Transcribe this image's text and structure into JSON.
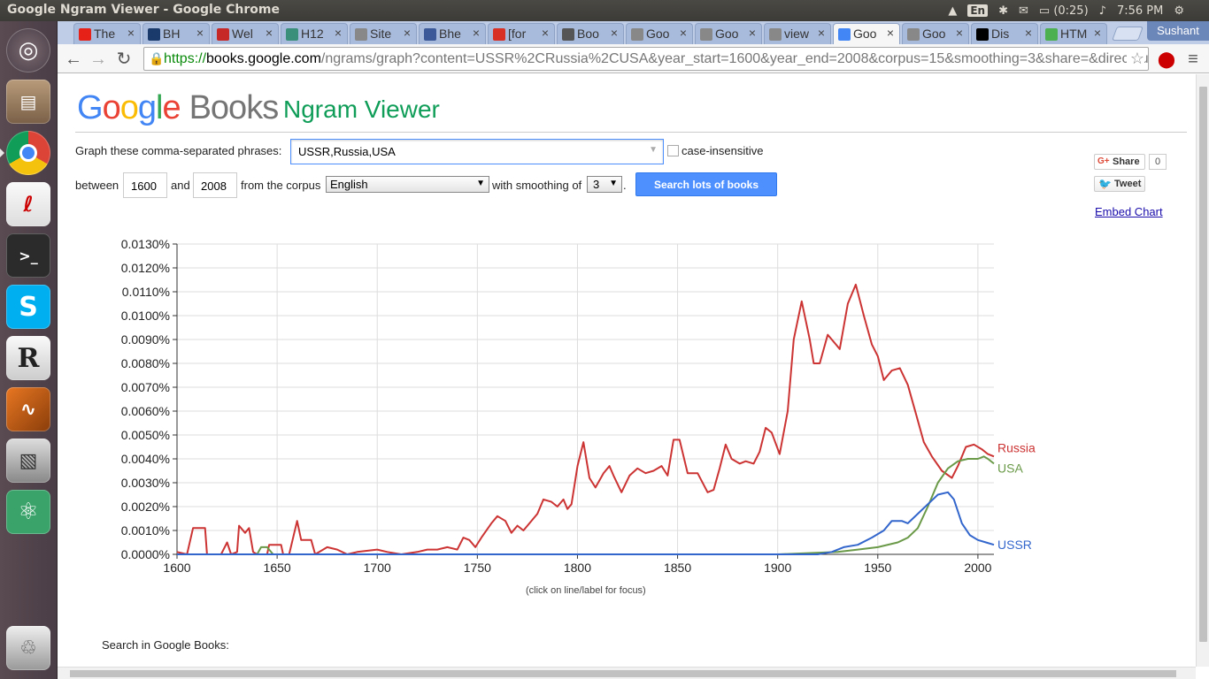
{
  "os_panel": {
    "window_title": "Google Ngram Viewer - Google Chrome",
    "keyboard_layout": "En",
    "battery": "(0:25)",
    "clock": "7:56 PM"
  },
  "browser": {
    "tabs": [
      {
        "label": "The",
        "favicon": "youtube-icon",
        "fav_color": "#e62117"
      },
      {
        "label": "BH",
        "favicon": "site-icon",
        "fav_color": "#1a3a6b"
      },
      {
        "label": "Wel",
        "favicon": "wf-icon",
        "fav_color": "#c62828"
      },
      {
        "label": "H12",
        "favicon": "cube-icon",
        "fav_color": "#3a8f7a"
      },
      {
        "label": "Site",
        "favicon": "page-icon",
        "fav_color": "#888888"
      },
      {
        "label": "Bhe",
        "favicon": "facebook-icon",
        "fav_color": "#3b5998"
      },
      {
        "label": "[for",
        "favicon": "gmail-icon",
        "fav_color": "#d93025"
      },
      {
        "label": "Boo",
        "favicon": "book-icon",
        "fav_color": "#555555"
      },
      {
        "label": "Goo",
        "favicon": "page-icon",
        "fav_color": "#888888"
      },
      {
        "label": "Goo",
        "favicon": "page-icon",
        "fav_color": "#888888"
      },
      {
        "label": "view",
        "favicon": "page-icon",
        "fav_color": "#888888"
      },
      {
        "label": "Goo",
        "favicon": "google-icon",
        "fav_color": "#4285f4",
        "active": true
      },
      {
        "label": "Goo",
        "favicon": "page-icon",
        "fav_color": "#888888"
      },
      {
        "label": "Dis",
        "favicon": "wikipedia-icon",
        "fav_color": "#000000"
      },
      {
        "label": "HTM",
        "favicon": "w3-icon",
        "fav_color": "#4caf50"
      }
    ],
    "profile_name": "Sushant",
    "url_scheme": "https://",
    "url_host": "books.google.com",
    "url_rest": "/ngrams/graph?content=USSR%2CRussia%2CUSA&year_start=1600&year_end=2008&corpus=15&smoothing=3&share=&direct_url="
  },
  "page": {
    "brand": "Books",
    "title": "Ngram Viewer",
    "phrases_label": "Graph these comma-separated phrases:",
    "phrases_value": "USSR,Russia,USA",
    "case_insensitive_label": "case-insensitive",
    "between_label": "between",
    "year_start": "1600",
    "and_label": "and",
    "year_end": "2008",
    "corpus_label": "from the corpus",
    "corpus_value": "English",
    "smoothing_label": "with smoothing of",
    "smoothing_value": "3",
    "period": ".",
    "search_button": "Search lots of books",
    "share_label": "Share",
    "share_count": "0",
    "tweet_label": "Tweet",
    "embed_label": "Embed Chart",
    "focus_hint": "(click on line/label for focus)",
    "search_in_books": "Search in Google Books:"
  },
  "chart_data": {
    "type": "line",
    "title": "",
    "xlabel": "",
    "ylabel": "",
    "xlim": [
      1600,
      2008
    ],
    "ylim": [
      0,
      0.013
    ],
    "x_ticks": [
      "1600",
      "1650",
      "1700",
      "1750",
      "1800",
      "1850",
      "1900",
      "1950",
      "2000"
    ],
    "y_ticks": [
      "0.0000%",
      "0.0010%",
      "0.0020%",
      "0.0030%",
      "0.0040%",
      "0.0050%",
      "0.0060%",
      "0.0070%",
      "0.0080%",
      "0.0090%",
      "0.0100%",
      "0.0110%",
      "0.0120%",
      "0.0130%"
    ],
    "grid": true,
    "legend": "labels at line ends (right)",
    "series": [
      {
        "name": "Russia",
        "color": "#cc3333",
        "points": [
          [
            1600,
            0.0001
          ],
          [
            1605,
            0.0
          ],
          [
            1608,
            0.0011
          ],
          [
            1614,
            0.0011
          ],
          [
            1615,
            0.0
          ],
          [
            1622,
            0.0
          ],
          [
            1625,
            0.0005
          ],
          [
            1627,
            0.0
          ],
          [
            1630,
            0.0001
          ],
          [
            1631,
            0.0012
          ],
          [
            1634,
            0.0009
          ],
          [
            1636,
            0.0011
          ],
          [
            1638,
            0.0001
          ],
          [
            1640,
            0.0
          ],
          [
            1645,
            0.0
          ],
          [
            1646,
            0.0004
          ],
          [
            1652,
            0.0004
          ],
          [
            1653,
            0.0
          ],
          [
            1656,
            0.0
          ],
          [
            1660,
            0.0014
          ],
          [
            1662,
            0.0006
          ],
          [
            1667,
            0.0006
          ],
          [
            1669,
            0.0
          ],
          [
            1675,
            0.0003
          ],
          [
            1680,
            0.0002
          ],
          [
            1685,
            0.0
          ],
          [
            1690,
            0.0001
          ],
          [
            1700,
            0.0002
          ],
          [
            1705,
            0.0001
          ],
          [
            1712,
            0.0
          ],
          [
            1720,
            0.0001
          ],
          [
            1725,
            0.0002
          ],
          [
            1730,
            0.0002
          ],
          [
            1735,
            0.0003
          ],
          [
            1740,
            0.0002
          ],
          [
            1743,
            0.0007
          ],
          [
            1746,
            0.0006
          ],
          [
            1749,
            0.0003
          ],
          [
            1752,
            0.0007
          ],
          [
            1757,
            0.0013
          ],
          [
            1760,
            0.0016
          ],
          [
            1764,
            0.0014
          ],
          [
            1767,
            0.0009
          ],
          [
            1770,
            0.0012
          ],
          [
            1773,
            0.001
          ],
          [
            1776,
            0.0013
          ],
          [
            1780,
            0.0017
          ],
          [
            1783,
            0.0023
          ],
          [
            1787,
            0.0022
          ],
          [
            1790,
            0.002
          ],
          [
            1793,
            0.0023
          ],
          [
            1795,
            0.0019
          ],
          [
            1797,
            0.0021
          ],
          [
            1800,
            0.0037
          ],
          [
            1803,
            0.0047
          ],
          [
            1806,
            0.0032
          ],
          [
            1809,
            0.0028
          ],
          [
            1813,
            0.0034
          ],
          [
            1816,
            0.0037
          ],
          [
            1818,
            0.0033
          ],
          [
            1822,
            0.0026
          ],
          [
            1826,
            0.0033
          ],
          [
            1830,
            0.0036
          ],
          [
            1834,
            0.0034
          ],
          [
            1838,
            0.0035
          ],
          [
            1842,
            0.0037
          ],
          [
            1845,
            0.0033
          ],
          [
            1848,
            0.0048
          ],
          [
            1851,
            0.0048
          ],
          [
            1855,
            0.0034
          ],
          [
            1860,
            0.0034
          ],
          [
            1865,
            0.0026
          ],
          [
            1868,
            0.0027
          ],
          [
            1871,
            0.0036
          ],
          [
            1874,
            0.0046
          ],
          [
            1877,
            0.004
          ],
          [
            1881,
            0.0038
          ],
          [
            1884,
            0.0039
          ],
          [
            1888,
            0.0038
          ],
          [
            1891,
            0.0043
          ],
          [
            1894,
            0.0053
          ],
          [
            1897,
            0.0051
          ],
          [
            1901,
            0.0042
          ],
          [
            1905,
            0.006
          ],
          [
            1908,
            0.009
          ],
          [
            1912,
            0.0106
          ],
          [
            1916,
            0.009
          ],
          [
            1918,
            0.008
          ],
          [
            1921,
            0.008
          ],
          [
            1925,
            0.0092
          ],
          [
            1929,
            0.0088
          ],
          [
            1931,
            0.0086
          ],
          [
            1935,
            0.0105
          ],
          [
            1939,
            0.0113
          ],
          [
            1943,
            0.01
          ],
          [
            1947,
            0.0088
          ],
          [
            1950,
            0.0083
          ],
          [
            1953,
            0.0073
          ],
          [
            1957,
            0.0077
          ],
          [
            1961,
            0.0078
          ],
          [
            1965,
            0.0071
          ],
          [
            1969,
            0.0059
          ],
          [
            1973,
            0.0047
          ],
          [
            1977,
            0.0041
          ],
          [
            1982,
            0.0035
          ],
          [
            1987,
            0.0032
          ],
          [
            1990,
            0.0037
          ],
          [
            1994,
            0.0045
          ],
          [
            1998,
            0.0046
          ],
          [
            2002,
            0.0044
          ],
          [
            2005,
            0.0042
          ],
          [
            2008,
            0.0041
          ]
        ]
      },
      {
        "name": "USA",
        "color": "#6a9a48",
        "points": [
          [
            1600,
            0.0
          ],
          [
            1640,
            0.0
          ],
          [
            1642,
            0.0003
          ],
          [
            1645,
            0.0003
          ],
          [
            1648,
            0.0
          ],
          [
            1700,
            0.0
          ],
          [
            1800,
            0.0
          ],
          [
            1900,
            0.0
          ],
          [
            1930,
            0.0001
          ],
          [
            1940,
            0.0002
          ],
          [
            1950,
            0.0003
          ],
          [
            1960,
            0.0005
          ],
          [
            1965,
            0.0007
          ],
          [
            1970,
            0.0011
          ],
          [
            1975,
            0.002
          ],
          [
            1980,
            0.003
          ],
          [
            1985,
            0.0036
          ],
          [
            1990,
            0.0039
          ],
          [
            1995,
            0.004
          ],
          [
            2000,
            0.004
          ],
          [
            2003,
            0.0041
          ],
          [
            2005,
            0.004
          ],
          [
            2008,
            0.0038
          ]
        ]
      },
      {
        "name": "USSR",
        "color": "#3366cc",
        "points": [
          [
            1600,
            0.0
          ],
          [
            1920,
            0.0
          ],
          [
            1927,
            0.0001
          ],
          [
            1933,
            0.0003
          ],
          [
            1940,
            0.0004
          ],
          [
            1947,
            0.0007
          ],
          [
            1953,
            0.001
          ],
          [
            1957,
            0.0014
          ],
          [
            1962,
            0.0014
          ],
          [
            1965,
            0.0013
          ],
          [
            1970,
            0.0017
          ],
          [
            1975,
            0.0021
          ],
          [
            1980,
            0.0025
          ],
          [
            1985,
            0.0026
          ],
          [
            1988,
            0.0023
          ],
          [
            1992,
            0.0013
          ],
          [
            1996,
            0.0008
          ],
          [
            2000,
            0.0006
          ],
          [
            2004,
            0.0005
          ],
          [
            2008,
            0.0004
          ]
        ]
      }
    ]
  }
}
